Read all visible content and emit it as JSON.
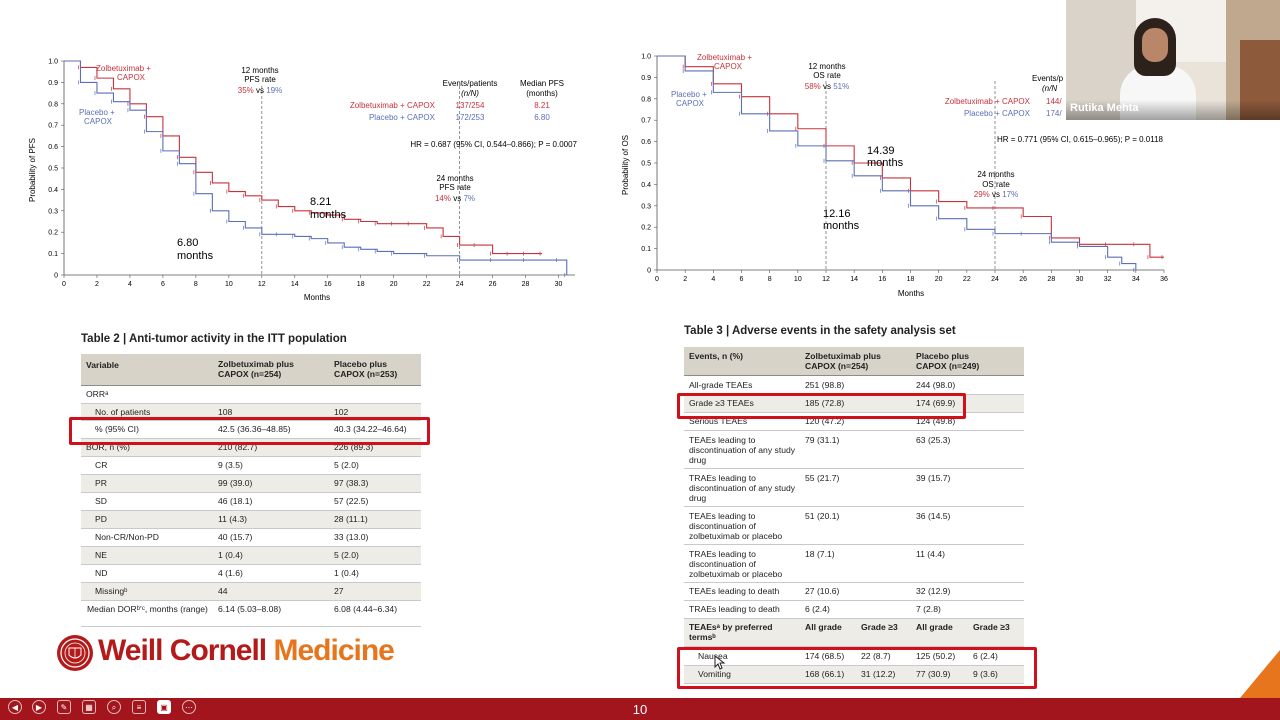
{
  "pfs_chart": {
    "type": "line",
    "ylabel": "Probability of PFS",
    "xlabel": "Months",
    "y_ticks": [
      "1.0",
      "0.9",
      "0.8",
      "0.7",
      "0.6",
      "0.5",
      "0.4",
      "0.3",
      "0.2",
      "0.1",
      "0"
    ],
    "x_ticks": [
      "0",
      "2",
      "4",
      "6",
      "8",
      "10",
      "12",
      "14",
      "16",
      "18",
      "20",
      "22",
      "24",
      "26",
      "28",
      "30"
    ],
    "zolbe_label_1": "Zolbetuximab +",
    "zolbe_label_2": "CAPOX",
    "placebo_label_1": "Placebo +",
    "placebo_label_2": "CAPOX",
    "m12_line1": "12 months",
    "m12_line2": "PFS rate",
    "m12_zolbe": "35%",
    "m12_vs": " vs ",
    "m12_placebo": "19%",
    "m24_line1": "24 months",
    "m24_line2": "PFS rate",
    "m24_zolbe": "14%",
    "m24_vs": " vs ",
    "m24_placebo": "7%",
    "events_header_1": "Events/patients",
    "events_header_2": "(n/N)",
    "median_header_1": "Median PFS",
    "median_header_2": "(months)",
    "row_zolbe_name": "Zolbetuximab + CAPOX",
    "row_zolbe_events": "137/254",
    "row_zolbe_median": "8.21",
    "row_placebo_name": "Placebo + CAPOX",
    "row_placebo_events": "172/253",
    "row_placebo_median": "6.80",
    "hr_text": "HR = 0.687 (95% CI, 0.544–0.866); P = 0.0007",
    "median_z_1": "8.21",
    "median_z_2": "months",
    "median_p_1": "6.80",
    "median_p_2": "months"
  },
  "os_chart": {
    "type": "line",
    "ylabel": "Probability of OS",
    "xlabel": "Months",
    "y_ticks": [
      "1.0",
      "0.9",
      "0.8",
      "0.7",
      "0.6",
      "0.5",
      "0.4",
      "0.3",
      "0.2",
      "0.1",
      "0"
    ],
    "x_ticks": [
      "0",
      "2",
      "4",
      "6",
      "8",
      "10",
      "12",
      "14",
      "16",
      "18",
      "20",
      "22",
      "24",
      "26",
      "28",
      "30",
      "32",
      "34",
      "36"
    ],
    "zolbe_label_1": "Zolbetuximab +",
    "zolbe_label_2": "CAPOX",
    "placebo_label_1": "Placebo +",
    "placebo_label_2": "CAPOX",
    "m12_line1": "12 months",
    "m12_line2": "OS rate",
    "m12_zolbe": "58%",
    "m12_vs": " vs ",
    "m12_placebo": "51%",
    "m24_line1": "24 months",
    "m24_line2": "OS rate",
    "m24_zolbe": "29%",
    "m24_vs": " vs ",
    "m24_placebo": "17%",
    "events_header_1": "Events/p",
    "events_header_2": "(n/N",
    "row_zolbe_name": "Zolbetuximab + CAPOX",
    "row_zolbe_events": "144/",
    "row_placebo_name": "Placebo + CAPOX",
    "row_placebo_events": "174/",
    "hr_text": "HR = 0.771 (95% CI, 0.615–0.965); P = 0.0118",
    "median_z_1": "14.39",
    "median_z_2": "months",
    "median_p_1": "12.16",
    "median_p_2": "months"
  },
  "chart_data": [
    {
      "type": "line",
      "title": "",
      "xlabel": "Months",
      "ylabel": "Probability of PFS",
      "xlim": [
        0,
        31
      ],
      "ylim": [
        0,
        1.0
      ],
      "series": [
        {
          "name": "Zolbetuximab + CAPOX",
          "color": "#c8323c",
          "x": [
            0,
            1,
            2,
            3,
            4,
            5,
            6,
            7,
            8,
            9,
            10,
            11,
            12,
            13,
            14,
            15,
            16,
            17,
            18,
            19,
            20,
            21,
            22,
            23,
            24,
            25,
            26,
            27,
            28,
            29
          ],
          "y": [
            1.0,
            0.97,
            0.92,
            0.87,
            0.8,
            0.74,
            0.65,
            0.55,
            0.48,
            0.43,
            0.39,
            0.37,
            0.35,
            0.32,
            0.3,
            0.29,
            0.28,
            0.26,
            0.25,
            0.24,
            0.24,
            0.24,
            0.22,
            0.18,
            0.14,
            0.14,
            0.1,
            0.1,
            0.1,
            0.1
          ]
        },
        {
          "name": "Placebo + CAPOX",
          "color": "#5b6fb5",
          "x": [
            0,
            1,
            2,
            3,
            4,
            5,
            6,
            7,
            8,
            9,
            10,
            11,
            12,
            13,
            14,
            15,
            16,
            17,
            18,
            19,
            20,
            22,
            24,
            26,
            28,
            30,
            30.5
          ],
          "y": [
            1.0,
            0.9,
            0.85,
            0.81,
            0.77,
            0.67,
            0.58,
            0.52,
            0.38,
            0.3,
            0.25,
            0.22,
            0.19,
            0.19,
            0.18,
            0.17,
            0.15,
            0.13,
            0.12,
            0.11,
            0.1,
            0.09,
            0.07,
            0.07,
            0.07,
            0.07,
            0.0
          ]
        }
      ]
    },
    {
      "type": "line",
      "title": "",
      "xlabel": "Months",
      "ylabel": "Probability of OS",
      "xlim": [
        0,
        36
      ],
      "ylim": [
        0,
        1.0
      ],
      "series": [
        {
          "name": "Zolbetuximab + CAPOX",
          "color": "#c8323c",
          "x": [
            0,
            2,
            4,
            6,
            8,
            10,
            12,
            14,
            16,
            18,
            20,
            22,
            24,
            26,
            28,
            30,
            32,
            34,
            35,
            36
          ],
          "y": [
            1.0,
            0.95,
            0.87,
            0.81,
            0.73,
            0.66,
            0.58,
            0.5,
            0.43,
            0.37,
            0.32,
            0.29,
            0.29,
            0.25,
            0.15,
            0.12,
            0.12,
            0.12,
            0.06,
            0.06
          ]
        },
        {
          "name": "Placebo + CAPOX",
          "color": "#5b6fb5",
          "x": [
            0,
            2,
            4,
            6,
            8,
            10,
            12,
            14,
            16,
            18,
            20,
            22,
            24,
            26,
            28,
            30,
            32,
            33,
            34
          ],
          "y": [
            1.0,
            0.93,
            0.83,
            0.73,
            0.65,
            0.58,
            0.51,
            0.44,
            0.37,
            0.3,
            0.24,
            0.19,
            0.17,
            0.17,
            0.13,
            0.11,
            0.06,
            0.03,
            0.0
          ]
        }
      ]
    }
  ],
  "table2": {
    "title": "Table 2 | Anti-tumor activity in the ITT population",
    "headers": [
      "Variable",
      "Zolbetuximab plus CAPOX (n=254)",
      "Placebo plus CAPOX (n=253)"
    ],
    "h1a": "Zolbetuximab plus",
    "h1b": "CAPOX (n=254)",
    "h2a": "Placebo plus",
    "h2b": "CAPOX (n=253)",
    "rows": [
      {
        "v": "ORRᵃ",
        "a": "",
        "b": ""
      },
      {
        "v": "No. of patients",
        "a": "108",
        "b": "102"
      },
      {
        "v": "% (95% CI)",
        "a": "42.5 (36.36–48.85)",
        "b": "40.3 (34.22–46.64)"
      },
      {
        "v": "BOR, n (%)",
        "a": "210 (82.7)",
        "b": "226 (89.3)"
      },
      {
        "v": "CR",
        "a": "9 (3.5)",
        "b": "5 (2.0)"
      },
      {
        "v": "PR",
        "a": "99 (39.0)",
        "b": "97 (38.3)"
      },
      {
        "v": "SD",
        "a": "46 (18.1)",
        "b": "57 (22.5)"
      },
      {
        "v": "PD",
        "a": "11 (4.3)",
        "b": "28 (11.1)"
      },
      {
        "v": "Non-CR/Non-PD",
        "a": "40 (15.7)",
        "b": "33 (13.0)"
      },
      {
        "v": "NE",
        "a": "1 (0.4)",
        "b": "5 (2.0)"
      },
      {
        "v": "ND",
        "a": "4 (1.6)",
        "b": "1 (0.4)"
      },
      {
        "v": "Missingᵇ",
        "a": "44",
        "b": "27"
      },
      {
        "v": "Median DORᵇ’ᶜ, months (range)",
        "a": "6.14 (5.03–8.08)",
        "b": "6.08 (4.44–6.34)"
      }
    ]
  },
  "table3": {
    "title": "Table 3 | Adverse events in the safety analysis set",
    "h0": "Events, n (%)",
    "h1a": "Zolbetuximab plus",
    "h1b": "CAPOX (n=254)",
    "h2a": "Placebo plus",
    "h2b": "CAPOX (n=249)",
    "rows": [
      {
        "v": "All-grade TEAEs",
        "a": "251 (98.8)",
        "b": "244 (98.0)"
      },
      {
        "v": "Grade ≥3 TEAEs",
        "a": "185 (72.8)",
        "b": "174 (69.9)"
      },
      {
        "v": "Serious TEAEs",
        "a": "120 (47.2)",
        "b": "124 (49.8)"
      },
      {
        "v": "TEAEs leading to discontinuation of any study drug",
        "a": "79 (31.1)",
        "b": "63 (25.3)"
      },
      {
        "v": "TRAEs leading to discontinuation of any study drug",
        "a": "55 (21.7)",
        "b": "39 (15.7)"
      },
      {
        "v": "TEAEs leading to discontinuation of zolbetuximab or placebo",
        "a": "51 (20.1)",
        "b": "36 (14.5)"
      },
      {
        "v": "TRAEs leading to discontinuation of zolbetuximab or placebo",
        "a": "18 (7.1)",
        "b": "11 (4.4)"
      },
      {
        "v": "TEAEs leading to death",
        "a": "27 (10.6)",
        "b": "32 (12.9)"
      },
      {
        "v": "TRAEs leading to death",
        "a": "6 (2.4)",
        "b": "7 (2.8)"
      }
    ],
    "sub_header": {
      "v": "TEAEsᵃ by preferred termsᵇ",
      "c1": "All grade",
      "c2": "Grade ≥3",
      "c3": "All grade",
      "c4": "Grade ≥3"
    },
    "terms": [
      {
        "v": "Nausea",
        "c1": "174 (68.5)",
        "c2": "22 (8.7)",
        "c3": "125 (50.2)",
        "c4": "6 (2.4)"
      },
      {
        "v": "Vomiting",
        "c1": "168 (66.1)",
        "c2": "31 (12.2)",
        "c3": "77 (30.9)",
        "c4": "9 (3.6)"
      }
    ]
  },
  "logo": {
    "part1": "Weill Cornell",
    "part2": "Medicine"
  },
  "presenter": {
    "name": "Rutika Mehta"
  },
  "slide": {
    "number": "10"
  },
  "colors": {
    "zolbe": "#c8323c",
    "placebo": "#5b6fb5",
    "highlight": "#d0101a",
    "bar": "#a3151d",
    "weill_red": "#b31b1b",
    "weill_orange": "#e7751d"
  }
}
